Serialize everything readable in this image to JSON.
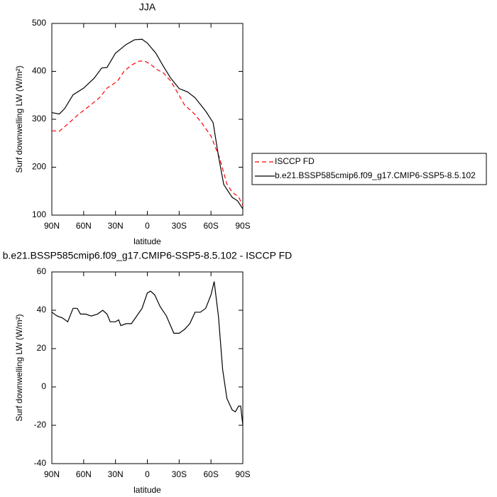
{
  "chart_data": [
    {
      "type": "line",
      "title": "JJA",
      "x_label": "latitude",
      "y_label": "Surf downwelling LW (W/m²)",
      "xlim": [
        90,
        -90
      ],
      "xticks": [
        {
          "value": 90,
          "label": "90N"
        },
        {
          "value": 60,
          "label": "60N"
        },
        {
          "value": 30,
          "label": "30N"
        },
        0,
        {
          "value": -30,
          "label": "30S"
        },
        {
          "value": -60,
          "label": "60S"
        },
        {
          "value": -90,
          "label": "90S"
        }
      ],
      "ylim": [
        100,
        500
      ],
      "yticks": [
        100,
        200,
        300,
        400,
        500
      ],
      "legend": "right",
      "series": [
        {
          "name": "ISCCP FD",
          "color": "#ff0000",
          "line_style": "dashed",
          "x": [
            90,
            83,
            75,
            65,
            55,
            45,
            38,
            33,
            28,
            22,
            15,
            8,
            3,
            -3,
            -8,
            -15,
            -22,
            -30,
            -35,
            -45,
            -52,
            -60,
            -68,
            -75,
            -80,
            -86,
            -90
          ],
          "values": [
            276,
            275,
            290,
            310,
            327,
            345,
            365,
            372,
            380,
            400,
            413,
            421,
            422,
            415,
            405,
            397,
            380,
            350,
            330,
            310,
            290,
            265,
            220,
            165,
            148,
            138,
            120
          ]
        },
        {
          "name": "b.e21.BSSP585cmip6.f09_g17.CMIP6-SSP5-8.5.102",
          "color": "#000000",
          "line_style": "solid",
          "x": [
            90,
            83,
            78,
            70,
            60,
            50,
            43,
            38,
            30,
            20,
            12,
            5,
            0,
            -8,
            -15,
            -22,
            -30,
            -38,
            -45,
            -55,
            -62,
            -67,
            -72,
            -80,
            -85,
            -90
          ],
          "values": [
            314,
            311,
            322,
            351,
            365,
            386,
            407,
            408,
            438,
            456,
            466,
            467,
            459,
            438,
            411,
            386,
            364,
            357,
            345,
            317,
            293,
            224,
            164,
            137,
            130,
            113
          ]
        }
      ]
    },
    {
      "type": "line",
      "title": "b.e21.BSSP585cmip6.f09_g17.CMIP6-SSP5-8.5.102 - ISCCP FD",
      "x_label": "latitude",
      "y_label": "Surf downwelling LW (W/m²)",
      "xlim": [
        90,
        -90
      ],
      "xticks": [
        {
          "value": 90,
          "label": "90N"
        },
        {
          "value": 60,
          "label": "60N"
        },
        {
          "value": 30,
          "label": "30N"
        },
        0,
        {
          "value": -30,
          "label": "30S"
        },
        {
          "value": -60,
          "label": "60S"
        },
        {
          "value": -90,
          "label": "90S"
        }
      ],
      "ylim": [
        -40,
        60
      ],
      "yticks": [
        -40,
        -20,
        0,
        20,
        40,
        60
      ],
      "series": [
        {
          "color": "#000000",
          "line_style": "solid",
          "x": [
            90,
            85,
            80,
            75,
            70,
            66,
            63,
            58,
            53,
            47,
            42,
            38,
            35,
            30,
            27,
            25,
            20,
            15,
            10,
            5,
            0,
            -3,
            -7,
            -12,
            -18,
            -25,
            -30,
            -35,
            -40,
            -45,
            -50,
            -55,
            -60,
            -63,
            -67,
            -71,
            -75,
            -80,
            -83,
            -86,
            -88,
            -90
          ],
          "values": [
            39,
            37,
            36,
            34,
            41,
            41,
            38,
            38,
            37,
            38,
            40,
            38,
            34,
            34,
            35,
            32,
            33,
            33,
            37,
            41,
            49,
            50,
            48,
            42,
            37,
            28,
            28,
            30,
            33,
            39,
            39,
            41,
            48,
            55,
            37,
            9,
            -6,
            -12,
            -13,
            -10,
            -10,
            -20
          ]
        }
      ]
    }
  ]
}
